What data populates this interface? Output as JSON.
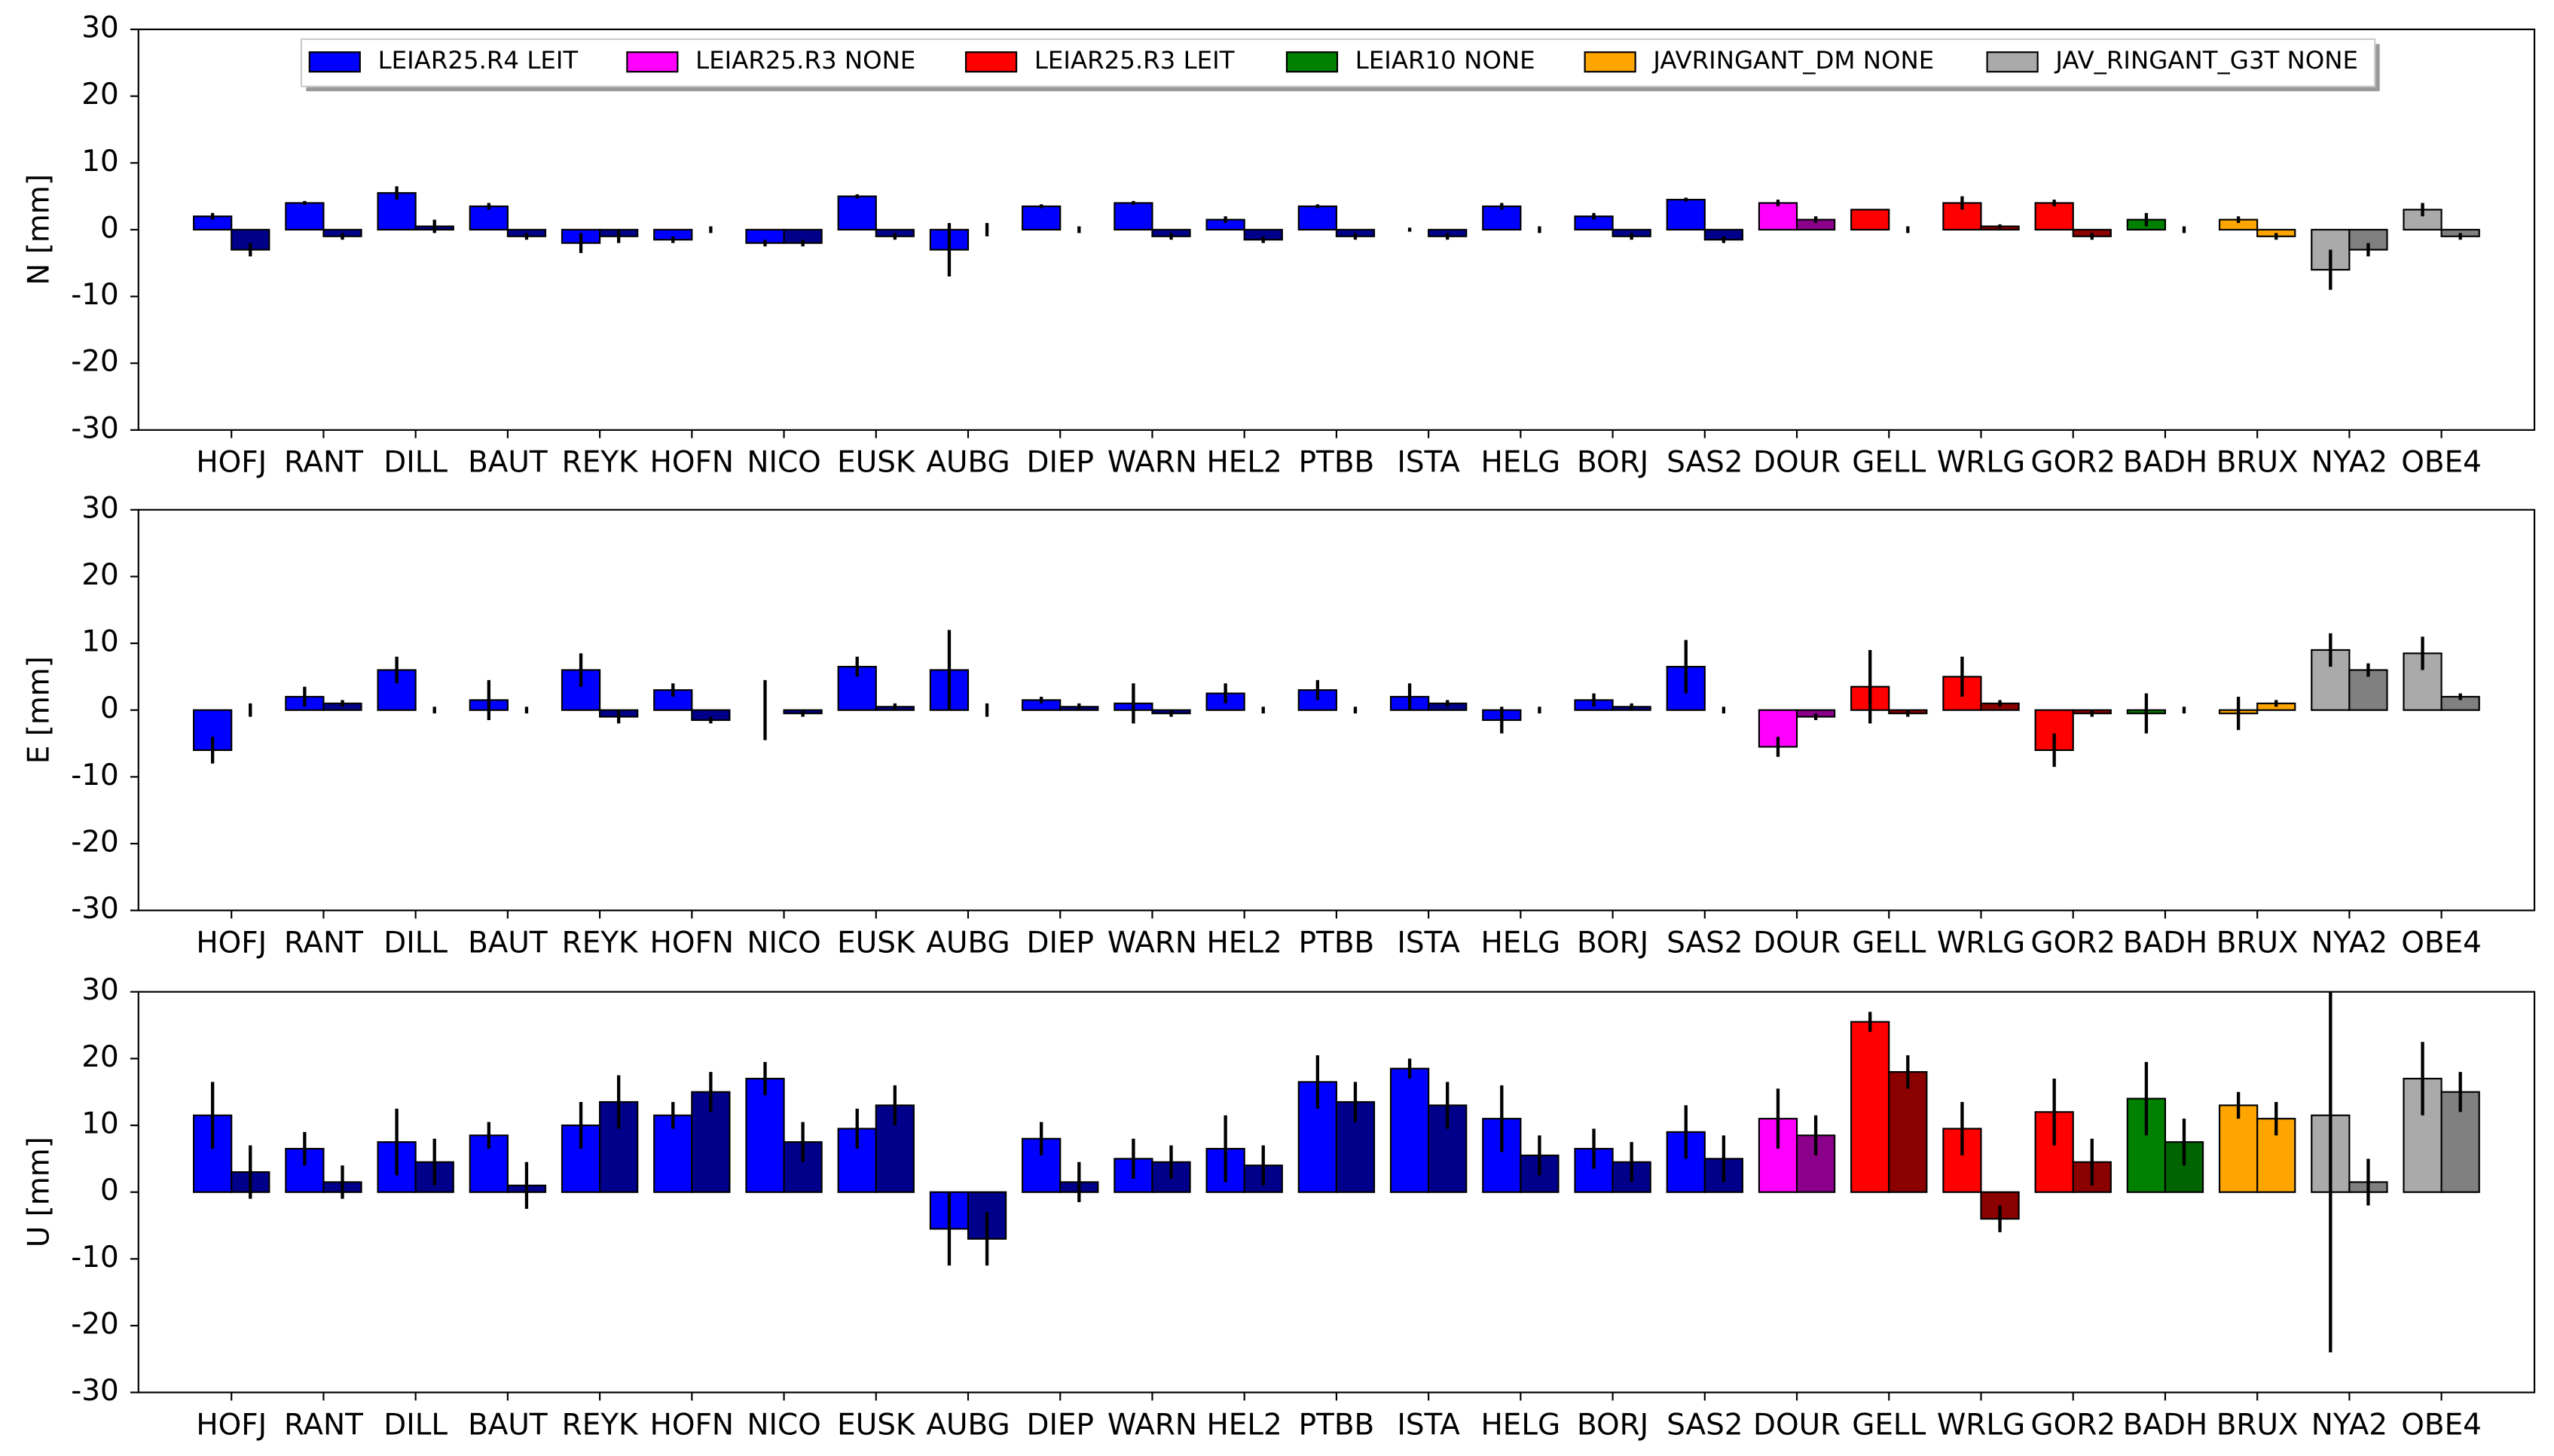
{
  "chart_data": [
    {
      "type": "bar",
      "ylabel": "N [mm]",
      "ylim": [
        -30,
        30
      ],
      "yticks": [
        -30,
        -20,
        -10,
        0,
        10,
        20,
        30
      ],
      "legend_loc": "upper center",
      "legend": [
        {
          "name": "LEIAR25.R4 LEIT",
          "color": "#0000ff"
        },
        {
          "name": "LEIAR25.R3 NONE",
          "color": "#ff00ff"
        },
        {
          "name": "LEIAR25.R3 LEIT",
          "color": "#ff0000"
        },
        {
          "name": "LEIAR10 NONE",
          "color": "#008000"
        },
        {
          "name": "JAVRINGANT_DM NONE",
          "color": "#ffa500"
        },
        {
          "name": "JAV_RINGANT_G3T NONE",
          "color": "#aaaaaa"
        }
      ],
      "categories": [
        "HOFJ",
        "RANT",
        "DILL",
        "BAUT",
        "REYK",
        "HOFN",
        "NICO",
        "EUSK",
        "AUBG",
        "DIEP",
        "WARN",
        "HEL2",
        "PTBB",
        "ISTA",
        "HELG",
        "BORJ",
        "SAS2",
        "DOUR",
        "GELL",
        "WRLG",
        "GOR2",
        "BADH",
        "BRUX",
        "NYA2",
        "OBE4"
      ],
      "series": [
        {
          "colors": [
            "#0000ff",
            "#0000ff",
            "#0000ff",
            "#0000ff",
            "#0000ff",
            "#0000ff",
            "#0000ff",
            "#0000ff",
            "#0000ff",
            "#0000ff",
            "#0000ff",
            "#0000ff",
            "#0000ff",
            "#0000ff",
            "#0000ff",
            "#0000ff",
            "#0000ff",
            "#ff00ff",
            "#ff0000",
            "#ff0000",
            "#ff0000",
            "#008000",
            "#ffa500",
            "#aaaaaa",
            "#aaaaaa"
          ],
          "values": [
            2,
            4,
            5.5,
            3.5,
            -2,
            -1.5,
            -2,
            5,
            -3,
            3.5,
            4,
            1.5,
            3.5,
            0,
            3.5,
            2,
            4.5,
            4,
            3,
            4,
            4,
            1.5,
            1.5,
            -6,
            3
          ],
          "errors": [
            0.5,
            0.3,
            1,
            0.5,
            1.5,
            0.5,
            0.5,
            0.3,
            4,
            0.3,
            0.3,
            0.5,
            0.3,
            0.3,
            0.5,
            0.5,
            0.3,
            0.5,
            0,
            1,
            0.5,
            1,
            0.5,
            3,
            1
          ]
        },
        {
          "colors": [
            "#00008b",
            "#00008b",
            "#00008b",
            "#00008b",
            "#00008b",
            "#00008b",
            "#00008b",
            "#00008b",
            "#00008b",
            "#00008b",
            "#00008b",
            "#00008b",
            "#00008b",
            "#00008b",
            "#00008b",
            "#00008b",
            "#00008b",
            "#8b008b",
            "#8b0000",
            "#8b0000",
            "#8b0000",
            "#006400",
            "#ffa500",
            "#808080",
            "#808080"
          ],
          "values": [
            -3,
            -1,
            0.5,
            -1,
            -1,
            0,
            -2,
            -1,
            0,
            0,
            -1,
            -1.5,
            -1,
            -1,
            0,
            -1,
            -1.5,
            1.5,
            0,
            0.5,
            -1,
            0,
            -1,
            -3,
            -1
          ],
          "errors": [
            1,
            0.5,
            1,
            0.5,
            1,
            0.5,
            0.5,
            0.5,
            1,
            0.5,
            0.5,
            0.5,
            0.5,
            0.5,
            0.5,
            0.5,
            0.5,
            0.5,
            0.5,
            0.3,
            0.5,
            0.5,
            0.5,
            1,
            0.5
          ]
        }
      ]
    },
    {
      "type": "bar",
      "ylabel": "E [mm]",
      "ylim": [
        -30,
        30
      ],
      "yticks": [
        -30,
        -20,
        -10,
        0,
        10,
        20,
        30
      ],
      "categories": [
        "HOFJ",
        "RANT",
        "DILL",
        "BAUT",
        "REYK",
        "HOFN",
        "NICO",
        "EUSK",
        "AUBG",
        "DIEP",
        "WARN",
        "HEL2",
        "PTBB",
        "ISTA",
        "HELG",
        "BORJ",
        "SAS2",
        "DOUR",
        "GELL",
        "WRLG",
        "GOR2",
        "BADH",
        "BRUX",
        "NYA2",
        "OBE4"
      ],
      "series": [
        {
          "colors": [
            "#0000ff",
            "#0000ff",
            "#0000ff",
            "#0000ff",
            "#0000ff",
            "#0000ff",
            "#0000ff",
            "#0000ff",
            "#0000ff",
            "#0000ff",
            "#0000ff",
            "#0000ff",
            "#0000ff",
            "#0000ff",
            "#0000ff",
            "#0000ff",
            "#0000ff",
            "#ff00ff",
            "#ff0000",
            "#ff0000",
            "#ff0000",
            "#008000",
            "#ffa500",
            "#aaaaaa",
            "#aaaaaa"
          ],
          "values": [
            -6,
            2,
            6,
            1.5,
            6,
            3,
            0,
            6.5,
            6,
            1.5,
            1,
            2.5,
            3,
            2,
            -1.5,
            1.5,
            6.5,
            -5.5,
            3.5,
            5,
            -6,
            -0.5,
            -0.5,
            9,
            8.5
          ],
          "errors": [
            2,
            1.5,
            2,
            3,
            2.5,
            1,
            4.5,
            1.5,
            6,
            0.5,
            3,
            1.5,
            1.5,
            2,
            2,
            1,
            4,
            1.5,
            5.5,
            3,
            2.5,
            3,
            2.5,
            2.5,
            2.5
          ]
        },
        {
          "colors": [
            "#00008b",
            "#00008b",
            "#00008b",
            "#00008b",
            "#00008b",
            "#00008b",
            "#00008b",
            "#00008b",
            "#00008b",
            "#00008b",
            "#00008b",
            "#00008b",
            "#00008b",
            "#00008b",
            "#00008b",
            "#00008b",
            "#00008b",
            "#8b008b",
            "#8b0000",
            "#8b0000",
            "#8b0000",
            "#006400",
            "#ffa500",
            "#808080",
            "#808080"
          ],
          "values": [
            0,
            1,
            0,
            0,
            -1,
            -1.5,
            -0.5,
            0.5,
            0,
            0.5,
            -0.5,
            0,
            0,
            1,
            0,
            0.5,
            0,
            -1,
            -0.5,
            1,
            -0.5,
            0,
            1,
            6,
            2
          ],
          "errors": [
            1,
            0.5,
            0.5,
            0.5,
            1,
            0.5,
            0.5,
            0.5,
            1,
            0.5,
            0.5,
            0.5,
            0.5,
            0.5,
            0.5,
            0.5,
            0.5,
            0.5,
            0.5,
            0.5,
            0.5,
            0.5,
            0.5,
            1,
            0.5
          ]
        }
      ]
    },
    {
      "type": "bar",
      "ylabel": "U [mm]",
      "ylim": [
        -30,
        30
      ],
      "yticks": [
        -30,
        -20,
        -10,
        0,
        10,
        20,
        30
      ],
      "categories": [
        "HOFJ",
        "RANT",
        "DILL",
        "BAUT",
        "REYK",
        "HOFN",
        "NICO",
        "EUSK",
        "AUBG",
        "DIEP",
        "WARN",
        "HEL2",
        "PTBB",
        "ISTA",
        "HELG",
        "BORJ",
        "SAS2",
        "DOUR",
        "GELL",
        "WRLG",
        "GOR2",
        "BADH",
        "BRUX",
        "NYA2",
        "OBE4"
      ],
      "series": [
        {
          "colors": [
            "#0000ff",
            "#0000ff",
            "#0000ff",
            "#0000ff",
            "#0000ff",
            "#0000ff",
            "#0000ff",
            "#0000ff",
            "#0000ff",
            "#0000ff",
            "#0000ff",
            "#0000ff",
            "#0000ff",
            "#0000ff",
            "#0000ff",
            "#0000ff",
            "#0000ff",
            "#ff00ff",
            "#ff0000",
            "#ff0000",
            "#ff0000",
            "#008000",
            "#ffa500",
            "#aaaaaa",
            "#aaaaaa"
          ],
          "values": [
            11.5,
            6.5,
            7.5,
            8.5,
            10,
            11.5,
            17,
            9.5,
            -5.5,
            8,
            5,
            6.5,
            16.5,
            18.5,
            11,
            6.5,
            9,
            11,
            25.5,
            9.5,
            12,
            14,
            13,
            11.5,
            17
          ],
          "errors": [
            5,
            2.5,
            5,
            2,
            3.5,
            2,
            2.5,
            3,
            5.5,
            2.5,
            3,
            5,
            4,
            1.5,
            5,
            3,
            4,
            4.5,
            1.5,
            4,
            5,
            5.5,
            2,
            35.5,
            5.5
          ]
        },
        {
          "colors": [
            "#00008b",
            "#00008b",
            "#00008b",
            "#00008b",
            "#00008b",
            "#00008b",
            "#00008b",
            "#00008b",
            "#00008b",
            "#00008b",
            "#00008b",
            "#00008b",
            "#00008b",
            "#00008b",
            "#00008b",
            "#00008b",
            "#00008b",
            "#8b008b",
            "#8b0000",
            "#8b0000",
            "#8b0000",
            "#006400",
            "#ffa500",
            "#808080",
            "#808080"
          ],
          "values": [
            3,
            1.5,
            4.5,
            1,
            13.5,
            15,
            7.5,
            13,
            -7,
            1.5,
            4.5,
            4,
            13.5,
            13,
            5.5,
            4.5,
            5,
            8.5,
            18,
            -4,
            4.5,
            7.5,
            11,
            1.5,
            15
          ],
          "errors": [
            4,
            2.5,
            3.5,
            3.5,
            4,
            3,
            3,
            3,
            4,
            3,
            2.5,
            3,
            3,
            3.5,
            3,
            3,
            3.5,
            3,
            2.5,
            2,
            3.5,
            3.5,
            2.5,
            3.5,
            3
          ]
        }
      ]
    }
  ]
}
